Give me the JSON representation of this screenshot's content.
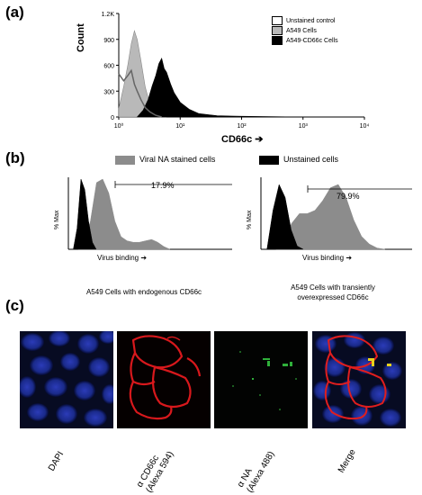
{
  "panel_a": {
    "label": "(a)",
    "y_ticks": [
      "0",
      "300",
      "600",
      "900",
      "1.2K"
    ],
    "ylabel": "Count",
    "x_ticks": [
      "10⁰",
      "10¹",
      "10²",
      "10³",
      "10⁴"
    ],
    "xlabel": "CD66c ➔",
    "legend": [
      "Unstained control",
      "A549 Cells",
      "A549-CD66c Cells"
    ],
    "legend_colors": [
      "#ffffff",
      "#b9b9b9",
      "#000000"
    ]
  },
  "panel_b": {
    "label": "(b)",
    "legend": [
      "Viral NA stained cells",
      "Unstained cells"
    ],
    "legend_colors": [
      "#8c8c8c",
      "#000000"
    ],
    "left": {
      "percent": "17.9%",
      "ylabel": "% Max",
      "xlabel": "Virus binding ➔",
      "caption": "A549 Cells with endogenous CD66c"
    },
    "right": {
      "percent": "79.9%",
      "ylabel": "% Max",
      "xlabel": "Virus binding ➔",
      "caption_line1": "A549 Cells with transiently",
      "caption_line2": "overexpressed CD66c"
    }
  },
  "panel_c": {
    "label": "(c)",
    "captions": [
      "DAPI",
      "α CD66c\n(Alexa 594)",
      "α NA\n(Alexa 488)",
      "Merge"
    ],
    "caption_lines": [
      [
        "DAPI"
      ],
      [
        "α CD66c",
        "(Alexa 594)"
      ],
      [
        "α NA",
        "(Alexa 488)"
      ],
      [
        "Merge"
      ]
    ]
  },
  "chart_data": [
    {
      "type": "area",
      "xscale": "log",
      "xlim": [
        1,
        10000
      ],
      "ylim": [
        0,
        1200
      ],
      "ylabel": "Count",
      "xlabel": "CD66c",
      "series": [
        {
          "name": "Unstained control",
          "x": [
            1,
            1.2,
            1.4,
            1.6,
            1.8,
            2.0,
            2.3,
            2.7,
            3.2,
            4,
            5
          ],
          "values": [
            500,
            420,
            480,
            540,
            380,
            300,
            200,
            110,
            60,
            20,
            0
          ]
        },
        {
          "name": "A549 Cells",
          "x": [
            1,
            1.2,
            1.4,
            1.6,
            1.8,
            2.0,
            2.3,
            2.7,
            3.2,
            4,
            5,
            6
          ],
          "values": [
            100,
            350,
            600,
            850,
            1000,
            900,
            650,
            350,
            150,
            50,
            10,
            0
          ]
        },
        {
          "name": "A549-CD66c Cells",
          "x": [
            2,
            2.5,
            3,
            3.5,
            4,
            4.5,
            5,
            5.5,
            6,
            7,
            8,
            10,
            14,
            20,
            40,
            100,
            1000
          ],
          "values": [
            0,
            80,
            200,
            360,
            480,
            620,
            680,
            560,
            520,
            380,
            280,
            170,
            90,
            40,
            15,
            8,
            0
          ]
        }
      ]
    },
    {
      "type": "area",
      "ylabel": "% Max",
      "xlabel": "Virus binding",
      "annotation": "17.9%",
      "series": [
        {
          "name": "Viral NA stained cells",
          "values": [
            0,
            5,
            40,
            95,
            100,
            80,
            40,
            18,
            12,
            10,
            10,
            12,
            14,
            10,
            4,
            0
          ]
        },
        {
          "name": "Unstained cells",
          "values": [
            0,
            30,
            100,
            85,
            40,
            10,
            0
          ]
        }
      ]
    },
    {
      "type": "area",
      "ylabel": "% Max",
      "xlabel": "Virus binding",
      "annotation": "79.9%",
      "series": [
        {
          "name": "Viral NA stained cells",
          "values": [
            0,
            10,
            40,
            55,
            55,
            60,
            75,
            95,
            100,
            80,
            45,
            20,
            8,
            2,
            0
          ]
        },
        {
          "name": "Unstained cells",
          "values": [
            0,
            60,
            100,
            80,
            30,
            5,
            0
          ]
        }
      ]
    }
  ]
}
